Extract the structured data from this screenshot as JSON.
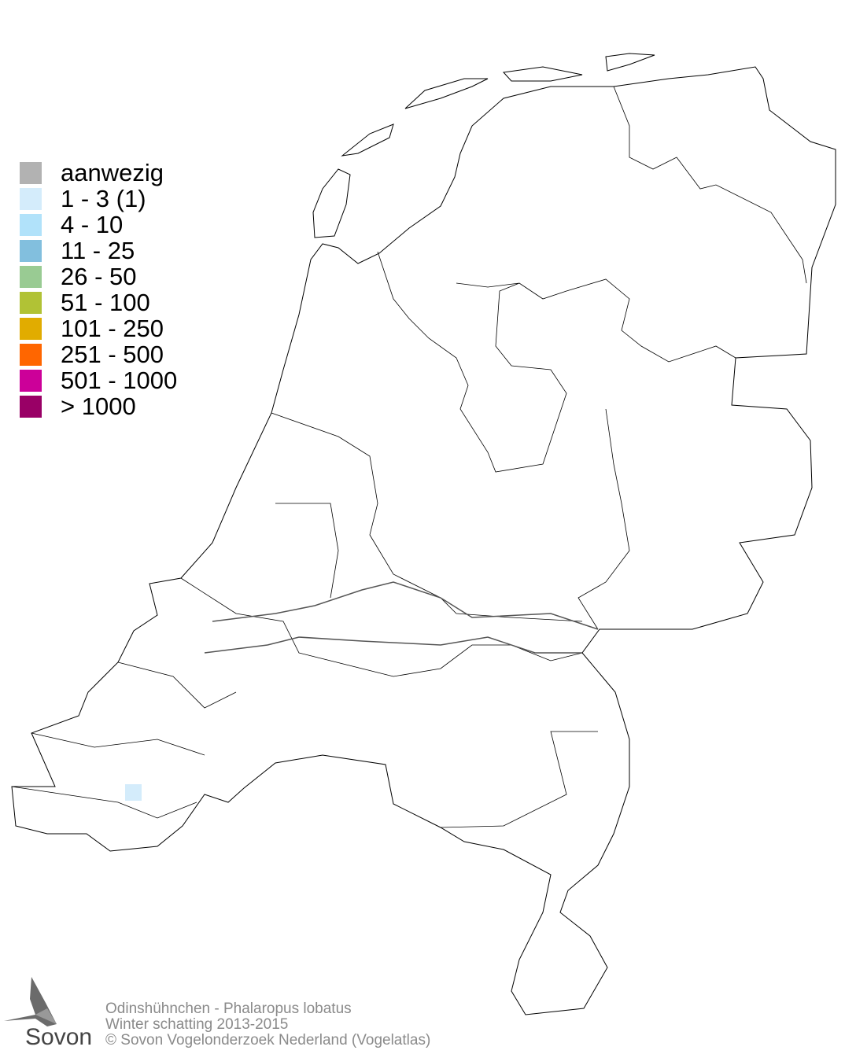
{
  "legend": {
    "items": [
      {
        "label": "aanwezig",
        "color": "#b2b2b2"
      },
      {
        "label": "1 - 3 (1)",
        "color": "#d4ecfb"
      },
      {
        "label": "4 - 10",
        "color": "#b1e2fa"
      },
      {
        "label": "11 - 25",
        "color": "#82bfde"
      },
      {
        "label": "26 - 50",
        "color": "#99cb93"
      },
      {
        "label": "51 - 100",
        "color": "#b1c235"
      },
      {
        "label": "101 - 250",
        "color": "#e1ac00"
      },
      {
        "label": "251 - 500",
        "color": "#ff6600"
      },
      {
        "label": "501 - 1000",
        "color": "#cc0099"
      },
      {
        "label": "> 1000",
        "color": "#990066"
      }
    ]
  },
  "observations": [
    {
      "class": "1 - 3 (1)",
      "color": "#d4ecfb",
      "region": "Zeeland"
    }
  ],
  "footer": {
    "species": "Odinshühnchen - Phalaropus lobatus",
    "period": "Winter schatting 2013-2015",
    "copyright": "© Sovon Vogelonderzoek Nederland (Vogelatlas)"
  },
  "logo": {
    "text": "Sovon"
  }
}
